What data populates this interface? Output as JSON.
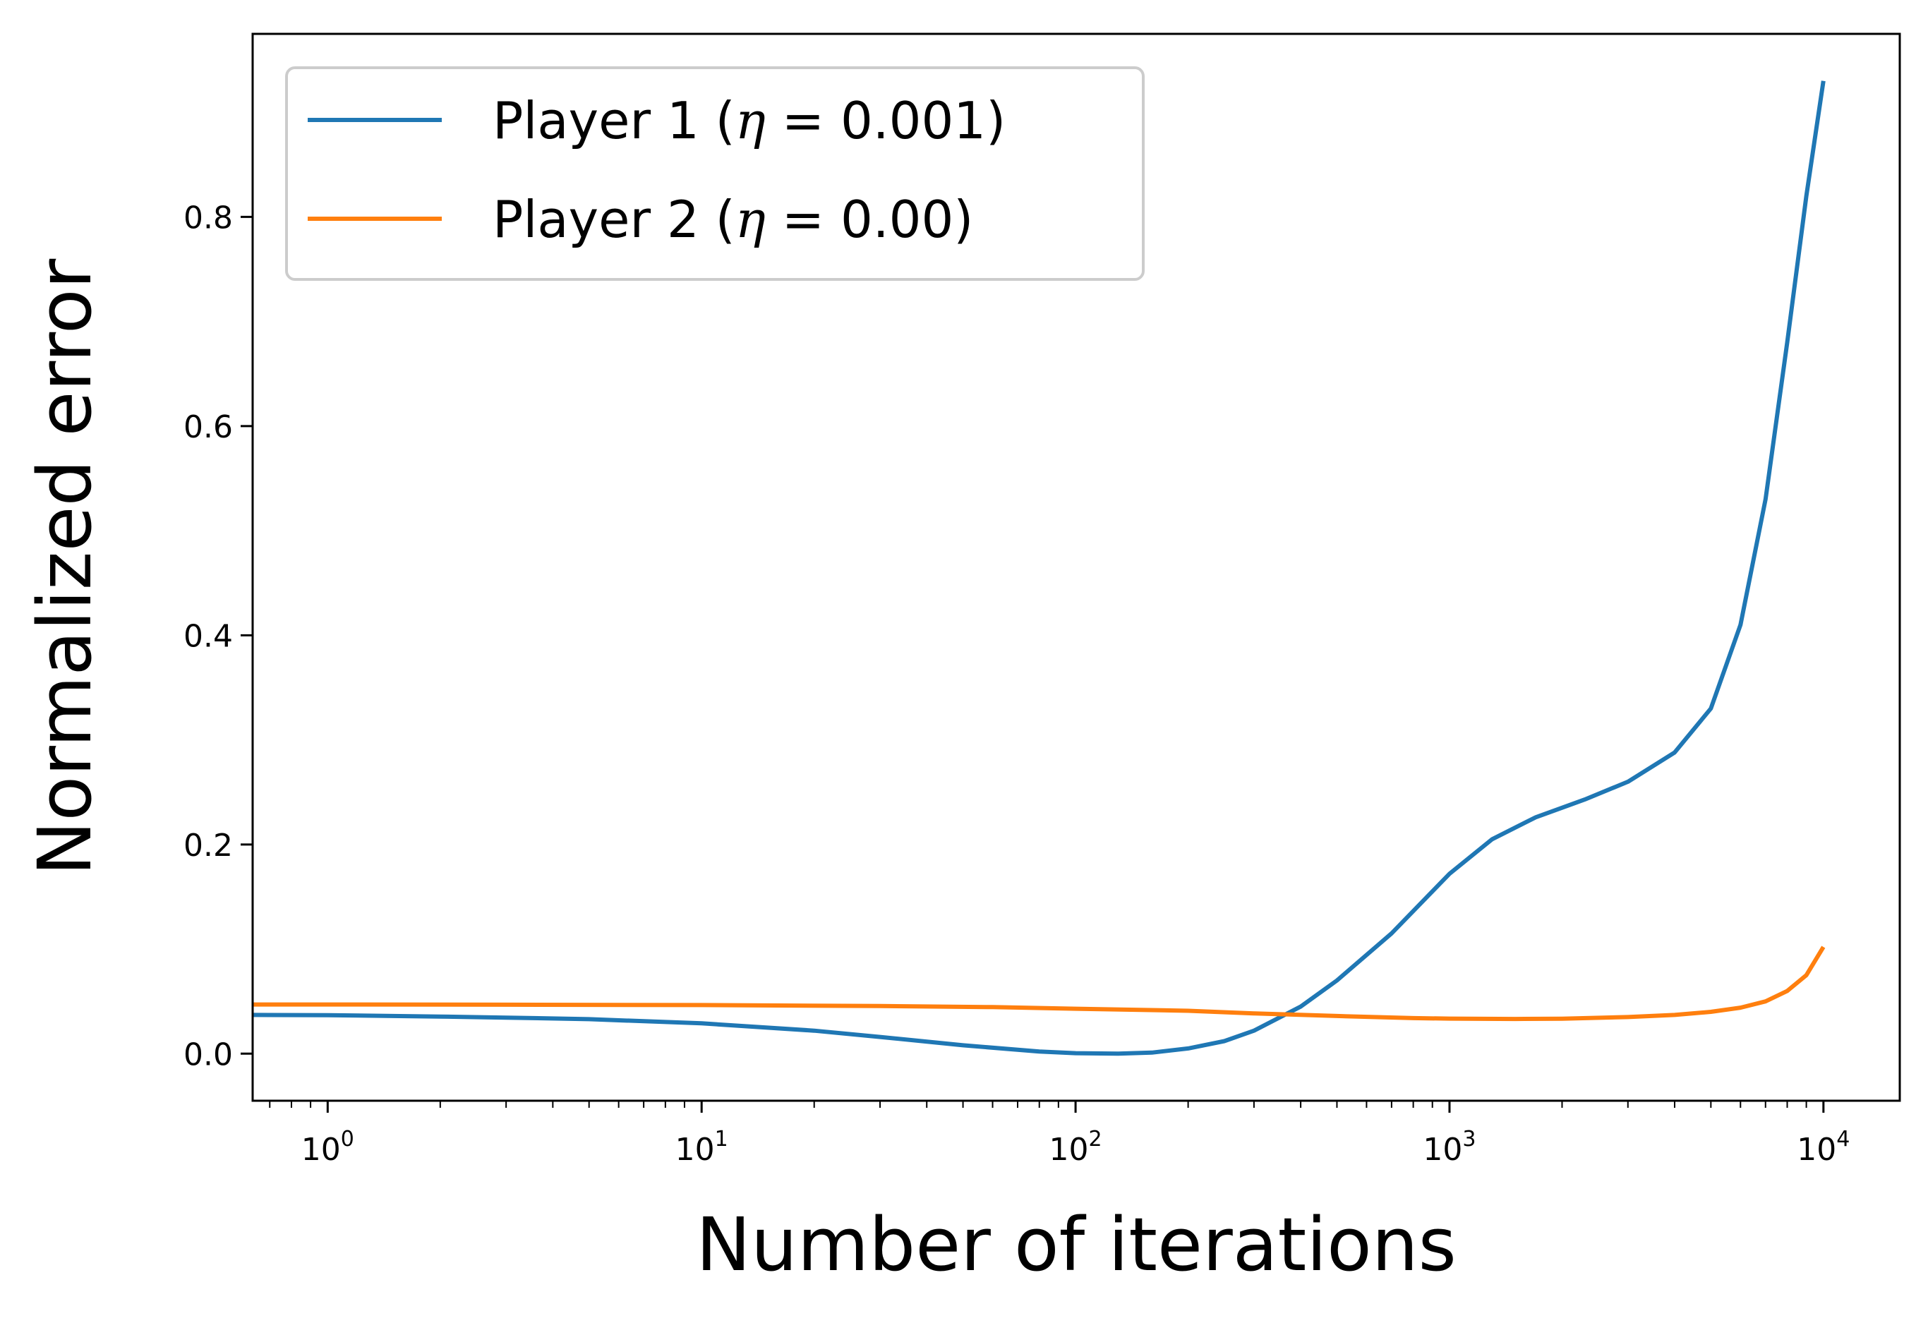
{
  "chart_data": {
    "type": "line",
    "xlabel": "Number of iterations",
    "ylabel": "Normalized error",
    "xscale": "log",
    "xlim": [
      0.63,
      16000
    ],
    "ylim": [
      -0.045,
      0.975
    ],
    "grid": false,
    "legend_position": "top-left",
    "x_ticks": [
      {
        "value": 1,
        "base": "10",
        "exp": "0"
      },
      {
        "value": 10,
        "base": "10",
        "exp": "1"
      },
      {
        "value": 100,
        "base": "10",
        "exp": "2"
      },
      {
        "value": 1000,
        "base": "10",
        "exp": "3"
      },
      {
        "value": 10000,
        "base": "10",
        "exp": "4"
      }
    ],
    "y_ticks": [
      {
        "value": 0.0,
        "label": "0.0"
      },
      {
        "value": 0.2,
        "label": "0.2"
      },
      {
        "value": 0.4,
        "label": "0.4"
      },
      {
        "value": 0.6,
        "label": "0.6"
      },
      {
        "value": 0.8,
        "label": "0.8"
      }
    ],
    "series": [
      {
        "name": "Player 1 (η = 0.001)",
        "label_prefix": "Player 1 (",
        "label_eta": "η",
        "label_suffix": " = 0.001)",
        "color": "#1f77b4",
        "points": [
          [
            0.63,
            0.037
          ],
          [
            1,
            0.0368
          ],
          [
            2,
            0.0355
          ],
          [
            3,
            0.0345
          ],
          [
            5,
            0.033
          ],
          [
            10,
            0.029
          ],
          [
            20,
            0.022
          ],
          [
            30,
            0.016
          ],
          [
            50,
            0.008
          ],
          [
            80,
            0.002
          ],
          [
            100,
            0.0005
          ],
          [
            130,
            0.0
          ],
          [
            160,
            0.001
          ],
          [
            200,
            0.005
          ],
          [
            250,
            0.012
          ],
          [
            300,
            0.022
          ],
          [
            400,
            0.045
          ],
          [
            500,
            0.07
          ],
          [
            700,
            0.115
          ],
          [
            1000,
            0.172
          ],
          [
            1300,
            0.205
          ],
          [
            1700,
            0.226
          ],
          [
            2300,
            0.243
          ],
          [
            3000,
            0.26
          ],
          [
            4000,
            0.288
          ],
          [
            5000,
            0.33
          ],
          [
            6000,
            0.41
          ],
          [
            7000,
            0.53
          ],
          [
            8000,
            0.68
          ],
          [
            9000,
            0.82
          ],
          [
            10000,
            0.93
          ]
        ]
      },
      {
        "name": "Player 2 (η = 0.00)",
        "label_prefix": "Player 2 (",
        "label_eta": "η",
        "label_suffix": " = 0.00)",
        "color": "#ff7f0e",
        "points": [
          [
            0.63,
            0.047
          ],
          [
            1,
            0.047
          ],
          [
            3,
            0.0468
          ],
          [
            10,
            0.0465
          ],
          [
            30,
            0.0455
          ],
          [
            60,
            0.0445
          ],
          [
            100,
            0.043
          ],
          [
            200,
            0.041
          ],
          [
            300,
            0.0385
          ],
          [
            500,
            0.036
          ],
          [
            800,
            0.034
          ],
          [
            1000,
            0.0335
          ],
          [
            1500,
            0.0332
          ],
          [
            2000,
            0.0334
          ],
          [
            3000,
            0.035
          ],
          [
            4000,
            0.037
          ],
          [
            5000,
            0.04
          ],
          [
            6000,
            0.044
          ],
          [
            7000,
            0.05
          ],
          [
            8000,
            0.06
          ],
          [
            9000,
            0.075
          ],
          [
            10000,
            0.102
          ]
        ]
      }
    ]
  }
}
